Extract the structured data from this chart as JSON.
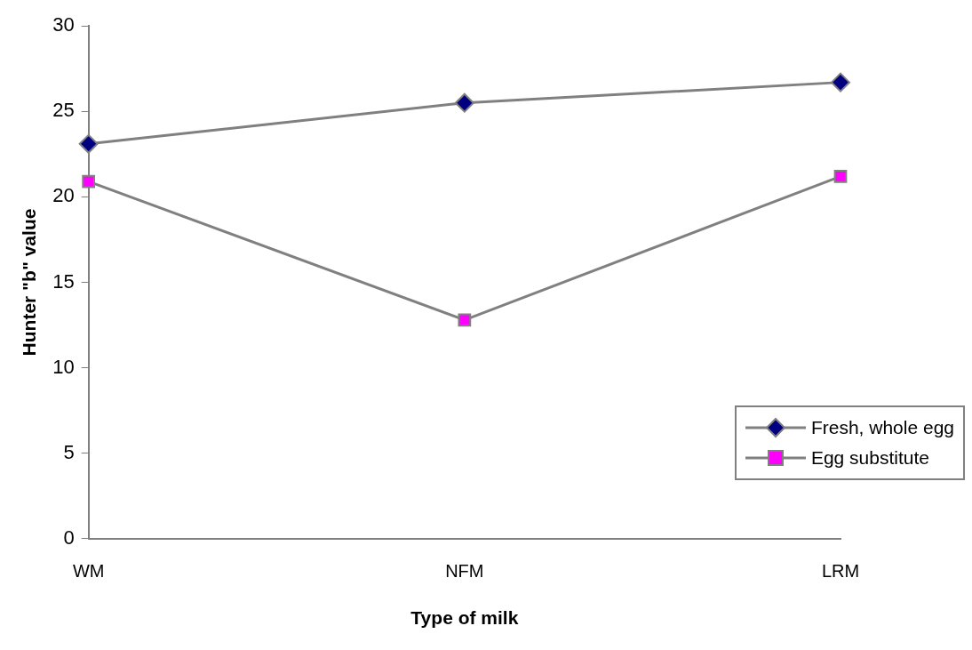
{
  "chart_data": {
    "type": "line",
    "xlabel": "Type of milk",
    "ylabel": "Hunter \"b\" value",
    "categories": [
      "WM",
      "NFM",
      "LRM"
    ],
    "series": [
      {
        "name": "Fresh, whole egg",
        "color": "#000080",
        "marker": "diamond",
        "values": [
          23.1,
          25.5,
          26.7
        ]
      },
      {
        "name": "Egg substitute",
        "color": "#ff00ff",
        "marker": "square",
        "values": [
          20.9,
          12.8,
          21.2
        ]
      }
    ],
    "ylim": [
      0,
      30
    ],
    "yticks": [
      0,
      5,
      10,
      15,
      20,
      25,
      30
    ],
    "grid": false,
    "legend": "right"
  }
}
